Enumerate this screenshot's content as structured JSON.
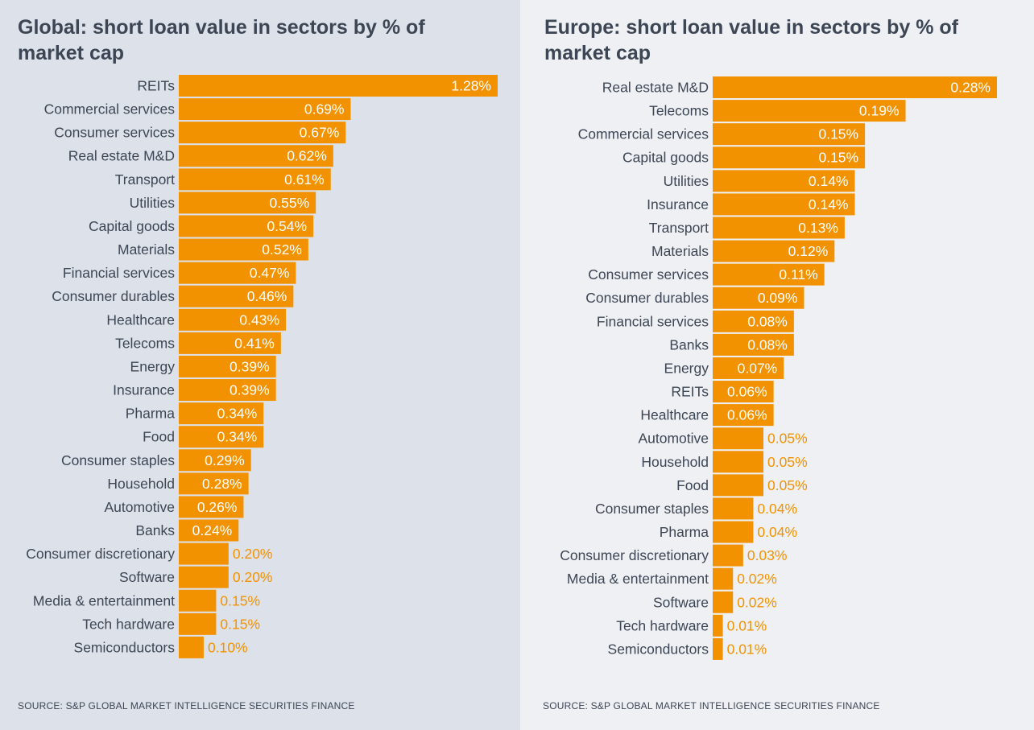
{
  "colors": {
    "bar": "#f39200",
    "label_dark": "#3d4654",
    "value_inside": "#ffffff",
    "value_outside": "#f39200"
  },
  "panels": [
    {
      "title": "Global: short loan value in sectors by % of market cap",
      "source": "SOURCE: S&P GLOBAL MARKET INTELLIGENCE SECURITIES FINANCE"
    },
    {
      "title": "Europe: short loan value in sectors by % of market cap",
      "source": "SOURCE: S&P GLOBAL MARKET INTELLIGENCE SECURITIES FINANCE"
    }
  ],
  "chart_data": [
    {
      "type": "bar",
      "orientation": "horizontal",
      "title": "Global: short loan value in sectors by % of market cap",
      "value_suffix": "%",
      "categories": [
        "REITs",
        "Commercial services",
        "Consumer services",
        "Real estate M&D",
        "Transport",
        "Utilities",
        "Capital goods",
        "Materials",
        "Financial services",
        "Consumer durables",
        "Healthcare",
        "Telecoms",
        "Energy",
        "Insurance",
        "Pharma",
        "Food",
        "Consumer staples",
        "Household",
        "Automotive",
        "Banks",
        "Consumer discretionary",
        "Software",
        "Media & entertainment",
        "Tech hardware",
        "Semiconductors"
      ],
      "values": [
        1.28,
        0.69,
        0.67,
        0.62,
        0.61,
        0.55,
        0.54,
        0.52,
        0.47,
        0.46,
        0.43,
        0.41,
        0.39,
        0.39,
        0.34,
        0.34,
        0.29,
        0.28,
        0.26,
        0.24,
        0.2,
        0.2,
        0.15,
        0.15,
        0.1
      ],
      "labels": [
        "1.28%",
        "0.69%",
        "0.67%",
        "0.62%",
        "0.61%",
        "0.55%",
        "0.54%",
        "0.52%",
        "0.47%",
        "0.46%",
        "0.43%",
        "0.41%",
        "0.39%",
        "0.39%",
        "0.34%",
        "0.34%",
        "0.29%",
        "0.28%",
        "0.26%",
        "0.24%",
        "0.20%",
        "0.20%",
        "0.15%",
        "0.15%",
        "0.10%"
      ],
      "xlim": [
        0,
        1.28
      ],
      "grid": false,
      "legend": "none"
    },
    {
      "type": "bar",
      "orientation": "horizontal",
      "title": "Europe: short loan value in sectors by % of market cap",
      "value_suffix": "%",
      "categories": [
        "Real estate M&D",
        "Telecoms",
        "Commercial services",
        "Capital goods",
        "Utilities",
        "Insurance",
        "Transport",
        "Materials",
        "Consumer services",
        "Consumer durables",
        "Financial services",
        "Banks",
        "Energy",
        "REITs",
        "Healthcare",
        "Automotive",
        "Household",
        "Food",
        "Consumer staples",
        "Pharma",
        "Consumer discretionary",
        "Media & entertainment",
        "Software",
        "Tech hardware",
        "Semiconductors"
      ],
      "values": [
        0.28,
        0.19,
        0.15,
        0.15,
        0.14,
        0.14,
        0.13,
        0.12,
        0.11,
        0.09,
        0.08,
        0.08,
        0.07,
        0.06,
        0.06,
        0.05,
        0.05,
        0.05,
        0.04,
        0.04,
        0.03,
        0.02,
        0.02,
        0.01,
        0.01
      ],
      "labels": [
        "0.28%",
        "0.19%",
        "0.15%",
        "0.15%",
        "0.14%",
        "0.14%",
        "0.13%",
        "0.12%",
        "0.11%",
        "0.09%",
        "0.08%",
        "0.08%",
        "0.07%",
        "0.06%",
        "0.06%",
        "0.05%",
        "0.05%",
        "0.05%",
        "0.04%",
        "0.04%",
        "0.03%",
        "0.02%",
        "0.02%",
        "0.01%",
        "0.01%"
      ],
      "xlim": [
        0,
        0.28
      ],
      "grid": false,
      "legend": "none"
    }
  ]
}
